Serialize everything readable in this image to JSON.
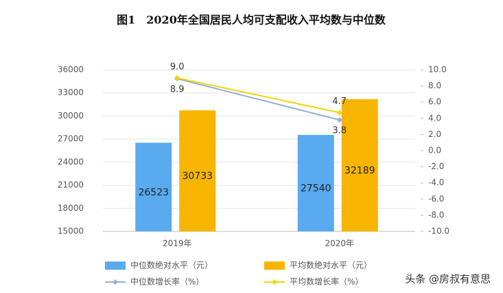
{
  "chart_data": {
    "type": "combo",
    "title": "图1　2020年全国居民人均可支配收入平均数与中位数",
    "categories": [
      "2019年",
      "2020年"
    ],
    "series": [
      {
        "name": "中位数绝对水平（元）",
        "type": "bar",
        "color": "#5aaaf0",
        "values": [
          26523,
          27540
        ]
      },
      {
        "name": "平均数绝对水平（元）",
        "type": "bar",
        "color": "#f7b500",
        "values": [
          30733,
          32189
        ]
      },
      {
        "name": "中位数增长率（%）",
        "type": "line",
        "axis": "y2",
        "color": "#8fb0d4",
        "values": [
          8.9,
          3.8
        ]
      },
      {
        "name": "平均数增长率（%）",
        "type": "line",
        "axis": "y2",
        "color": "#f2d400",
        "values": [
          9.0,
          4.7
        ],
        "value_labels": [
          "9.0",
          "4.7"
        ]
      }
    ],
    "ylim": [
      15000,
      36000
    ],
    "yticks": [
      15000,
      18000,
      21000,
      24000,
      27000,
      30000,
      33000,
      36000
    ],
    "y2lim": [
      -10,
      10
    ],
    "y2ticks": [
      {
        "value": -10,
        "label": "-10.0"
      },
      {
        "value": -8,
        "label": "-8.0"
      },
      {
        "value": -6,
        "label": "-6.0"
      },
      {
        "value": -4,
        "label": "-4.0"
      },
      {
        "value": -2,
        "label": "-2.0"
      },
      {
        "value": 0,
        "label": "0.0"
      },
      {
        "value": 2,
        "label": "2.0"
      },
      {
        "value": 4,
        "label": "4.0"
      },
      {
        "value": 6,
        "label": "6.0"
      },
      {
        "value": 8,
        "label": "8.0"
      },
      {
        "value": 10,
        "label": "10.0"
      }
    ],
    "grid": true,
    "watermark": "头条 @房叔有意思"
  }
}
